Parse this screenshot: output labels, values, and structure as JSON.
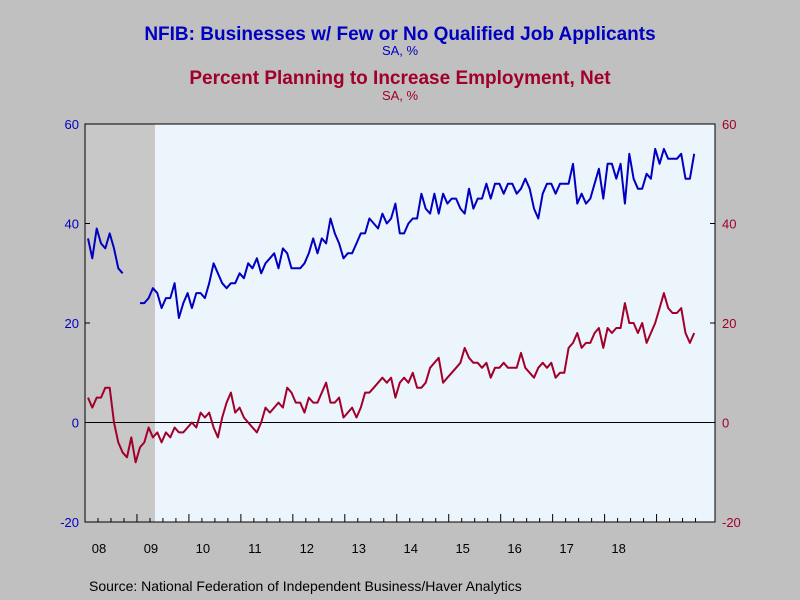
{
  "chart_data": {
    "type": "line",
    "title_1": "NFIB: Businesses w/ Few or No Qualified Job Applicants",
    "subtitle_1": "SA, %",
    "title_2": "Percent Planning to Increase Employment, Net",
    "subtitle_2": "SA, %",
    "source": "Source:  National Federation of Independent Business/Haver Analytics",
    "colors": {
      "series_1": "#0000c0",
      "series_2": "#a0002a",
      "background": "#c0c0c0",
      "plot": "#ecf4fc",
      "recession": "#c8c8c8"
    },
    "ylim": [
      -20,
      60
    ],
    "y_ticks_left": [
      "60",
      "40",
      "20",
      "0",
      "-20"
    ],
    "y_ticks_right": [
      "60",
      "40",
      "20",
      "0",
      "-20"
    ],
    "x_tick_labels": [
      "08",
      "09",
      "10",
      "11",
      "12",
      "13",
      "14",
      "15",
      "16",
      "17",
      "18"
    ],
    "recession_shading": {
      "start": "2008-01",
      "end": "2009-06"
    },
    "x_start": "2008-01",
    "series": [
      {
        "name": "NFIB: Businesses w/ Few or No Qualified Job Applicants",
        "axis": "left",
        "values": [
          37,
          33,
          39,
          36,
          35,
          38,
          35,
          31,
          30,
          null,
          null,
          null,
          24,
          24,
          25,
          27,
          26,
          23,
          25,
          25,
          28,
          21,
          24,
          26,
          23,
          26,
          26,
          25,
          28,
          32,
          30,
          28,
          27,
          28,
          28,
          30,
          29,
          32,
          31,
          33,
          30,
          32,
          33,
          34,
          31,
          35,
          34,
          31,
          31,
          31,
          32,
          34,
          37,
          34,
          37,
          36,
          41,
          38,
          36,
          33,
          34,
          34,
          36,
          38,
          38,
          41,
          40,
          39,
          42,
          40,
          41,
          44,
          38,
          38,
          40,
          41,
          41,
          46,
          43,
          42,
          46,
          42,
          46,
          44,
          45,
          45,
          43,
          42,
          47,
          43,
          45,
          45,
          48,
          45,
          48,
          48,
          46,
          48,
          48,
          46,
          47,
          49,
          47,
          43,
          41,
          46,
          48,
          48,
          46,
          48,
          48,
          48,
          52,
          44,
          46,
          44,
          45,
          48,
          51,
          45,
          52,
          52,
          49,
          52,
          44,
          54,
          49,
          47,
          47,
          50,
          49,
          55,
          52,
          55,
          53,
          53,
          53,
          54,
          49,
          49,
          54
        ]
      },
      {
        "name": "Percent Planning to Increase Employment, Net",
        "axis": "right",
        "values": [
          5,
          3,
          5,
          5,
          7,
          7,
          0,
          -4,
          -6,
          -7,
          -3,
          -8,
          -5,
          -4,
          -1,
          -3,
          -2,
          -4,
          -2,
          -3,
          -1,
          -2,
          -2,
          -1,
          0,
          -1,
          2,
          1,
          2,
          -1,
          -3,
          1,
          4,
          6,
          2,
          3,
          1,
          0,
          -1,
          -2,
          0,
          3,
          2,
          3,
          4,
          3,
          7,
          6,
          4,
          4,
          2,
          5,
          4,
          4,
          6,
          8,
          4,
          4,
          5,
          1,
          2,
          3,
          1,
          3,
          6,
          6,
          7,
          8,
          9,
          8,
          9,
          5,
          8,
          9,
          8,
          10,
          7,
          7,
          8,
          11,
          12,
          13,
          8,
          9,
          10,
          11,
          12,
          15,
          13,
          12,
          12,
          11,
          12,
          9,
          11,
          11,
          12,
          11,
          11,
          11,
          14,
          11,
          10,
          9,
          11,
          12,
          11,
          12,
          9,
          10,
          10,
          15,
          16,
          18,
          15,
          16,
          16,
          18,
          19,
          15,
          19,
          18,
          19,
          19,
          24,
          20,
          20,
          18,
          20,
          16,
          18,
          20,
          23,
          26,
          23,
          22,
          22,
          23,
          18,
          16,
          18
        ]
      }
    ]
  }
}
